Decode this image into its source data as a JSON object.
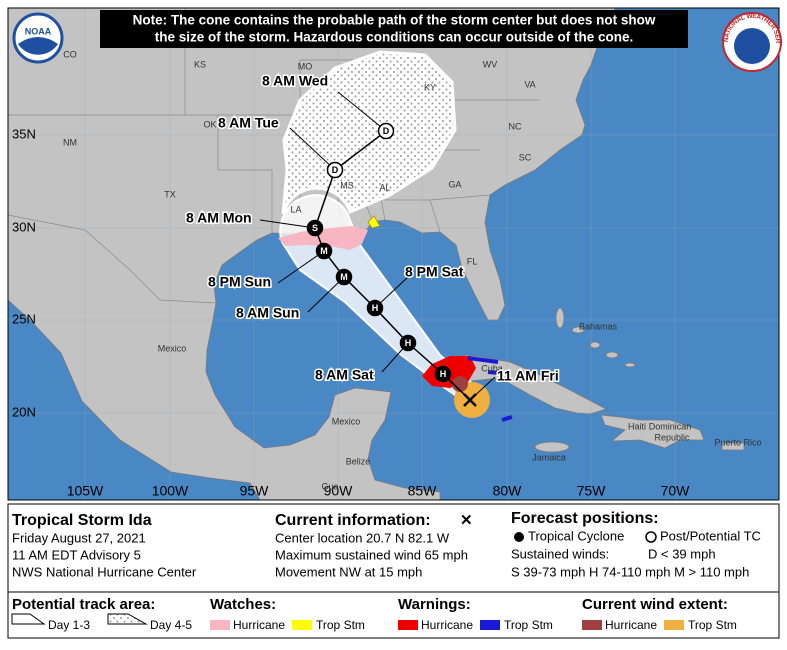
{
  "note": {
    "lines": [
      "Note: The cone contains the probable path of the storm center but does not show",
      "the size of the storm. Hazardous conditions can occur outside of the cone."
    ]
  },
  "logos": {
    "noaa": "NOAA",
    "nws": "NATIONAL WEATHER SERVICE"
  },
  "map": {
    "lat_labels": [
      "35N",
      "30N",
      "25N",
      "20N"
    ],
    "lon_labels": [
      "105W",
      "100W",
      "95W",
      "90W",
      "85W",
      "80W",
      "75W",
      "70W"
    ],
    "places": [
      "CO",
      "KS",
      "MO",
      "KY",
      "WV",
      "VA",
      "NM",
      "OK",
      "NC",
      "SC",
      "TX",
      "LA",
      "MS",
      "AL",
      "GA",
      "FL",
      "Bahamas",
      "Mexico",
      "Cuba",
      "Mexico",
      "Belize",
      "Gua",
      "Jamaica",
      "Haiti",
      "Dominican",
      "Republic",
      "Puerto Rico"
    ],
    "track_labels": [
      "8 AM Wed",
      "8 AM Tue",
      "8 AM Mon",
      "8 PM Sun",
      "8 AM Sun",
      "8 PM Sat",
      "8 AM Sat",
      "11 AM Fri"
    ],
    "positions": [
      "D",
      "D",
      "S",
      "M",
      "M",
      "H",
      "H",
      "H"
    ]
  },
  "info": {
    "storm": {
      "name": "Tropical Storm Ida",
      "lines": [
        "Friday August 27, 2021",
        "11 AM EDT Advisory 5",
        "NWS National Hurricane Center"
      ]
    },
    "current": {
      "title": "Current information:",
      "symbol": "✕",
      "lines": [
        "Center location 20.7 N 82.1 W",
        "Maximum sustained wind 65 mph",
        "Movement NW at 15 mph"
      ]
    },
    "forecast": {
      "title": "Forecast positions:",
      "cyclone": "Tropical Cyclone",
      "post": "Post/Potential TC",
      "winds": "Sustained winds:",
      "d": "D < 39 mph",
      "scale": "S 39-73 mph  H 74-110 mph  M > 110 mph"
    }
  },
  "legend": {
    "track_title": "Potential track area:",
    "day13": "Day 1-3",
    "day45": "Day 4-5",
    "watches": {
      "title": "Watches:",
      "hurricane": "Hurricane",
      "ts": "Trop Stm"
    },
    "warnings": {
      "title": "Warnings:",
      "hurricane": "Hurricane",
      "ts": "Trop Stm"
    },
    "extent": {
      "title": "Current wind extent:",
      "hurricane": "Hurricane",
      "ts": "Trop Stm"
    }
  }
}
